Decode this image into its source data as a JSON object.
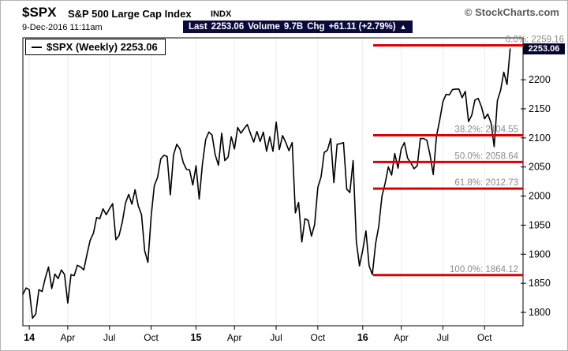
{
  "header": {
    "symbol": "$SPX",
    "index_name": "S&P 500 Large Cap Index",
    "exchange": "INDX",
    "source": "© StockCharts.com",
    "datetime": "9-Dec-2016 11:11am",
    "quote": {
      "last_label": "Last",
      "last_value": "2253.06",
      "volume_label": "Volume",
      "volume_value": "9.7B",
      "chg_label": "Chg",
      "chg_value": "+61.11 (+2.79%)",
      "arrow": "▲"
    }
  },
  "legend": {
    "label": "$SPX (Weekly) 2253.06"
  },
  "price_tag": "2253.06",
  "colors": {
    "line": "#000000",
    "fib": "#dd0000",
    "quote_bar_bg": "#0a0a3c",
    "price_tag_bg": "#05052b",
    "grid": "#ededed",
    "fib_label": "#8a8a8a"
  },
  "chart_data": {
    "type": "line",
    "title": "$SPX (Weekly) 2253.06",
    "series_name": "$SPX weekly close, Jan 2014 - 9 Dec 2016",
    "xlabel": "",
    "ylabel": "",
    "grid": "light vertical gridlines at quarter ticks",
    "legend_position": "top-left",
    "y_range": [
      1777,
      2272
    ],
    "y_ticks": [
      1800,
      1850,
      1900,
      1950,
      2000,
      2050,
      2100,
      2150,
      2200
    ],
    "x_ticks": [
      {
        "label": "14",
        "index": 2,
        "year": true
      },
      {
        "label": "Apr",
        "index": 14
      },
      {
        "label": "Jul",
        "index": 27
      },
      {
        "label": "Oct",
        "index": 40
      },
      {
        "label": "15",
        "index": 54,
        "year": true
      },
      {
        "label": "Apr",
        "index": 66
      },
      {
        "label": "Jul",
        "index": 79
      },
      {
        "label": "Oct",
        "index": 92
      },
      {
        "label": "16",
        "index": 106,
        "year": true
      },
      {
        "label": "Apr",
        "index": 118
      },
      {
        "label": "Jul",
        "index": 131
      },
      {
        "label": "Oct",
        "index": 144
      }
    ],
    "values": [
      1831,
      1842,
      1839,
      1790,
      1797,
      1839,
      1836,
      1859,
      1878,
      1841,
      1866,
      1858,
      1873,
      1865,
      1816,
      1865,
      1863,
      1881,
      1878,
      1873,
      1900,
      1924,
      1936,
      1963,
      1961,
      1978,
      1968,
      1978,
      1987,
      1925,
      1932,
      1955,
      1988,
      2003,
      1986,
      2011,
      1983,
      1968,
      1906,
      1886,
      1965,
      2018,
      2032,
      2064,
      2070,
      2068,
      2002,
      2071,
      2089,
      2081,
      2058,
      2046,
      2045,
      2019,
      2052,
      1995,
      2055,
      2097,
      2110,
      2105,
      2071,
      2053,
      2108,
      2061,
      2067,
      2102,
      2081,
      2118,
      2108,
      2116,
      2123,
      2107,
      2093,
      2111,
      2094,
      2110,
      2077,
      2102,
      2077,
      2127,
      2080,
      2104,
      2092,
      2078,
      2092,
      1971,
      1989,
      1921,
      1961,
      1958,
      1931,
      1951,
      2015,
      2033,
      2075,
      2079,
      2099,
      2023,
      2089,
      2090,
      2092,
      2012,
      2006,
      2061,
      1922,
      1880,
      1907,
      1940,
      1880,
      1865,
      1918,
      1948,
      2000,
      2022,
      2050,
      2036,
      2073,
      2048,
      2081,
      2092,
      2065,
      2057,
      2047,
      2052,
      2099,
      2099,
      2096,
      2071,
      2037,
      2103,
      2130,
      2162,
      2175,
      2174,
      2183,
      2184,
      2184,
      2169,
      2180,
      2128,
      2139,
      2165,
      2168,
      2154,
      2133,
      2141,
      2126,
      2085,
      2164,
      2182,
      2213,
      2192,
      2253.06
    ],
    "fib_lines": [
      {
        "label": "0.0%: 2259.16",
        "value": 2259.16
      },
      {
        "label": "38.2%: 2104.55",
        "value": 2104.55
      },
      {
        "label": "50.0%: 2058.64",
        "value": 2058.64
      },
      {
        "label": "61.8%: 2012.73",
        "value": 2012.73
      },
      {
        "label": "100.0%: 1864.12",
        "value": 1864.12
      }
    ]
  }
}
